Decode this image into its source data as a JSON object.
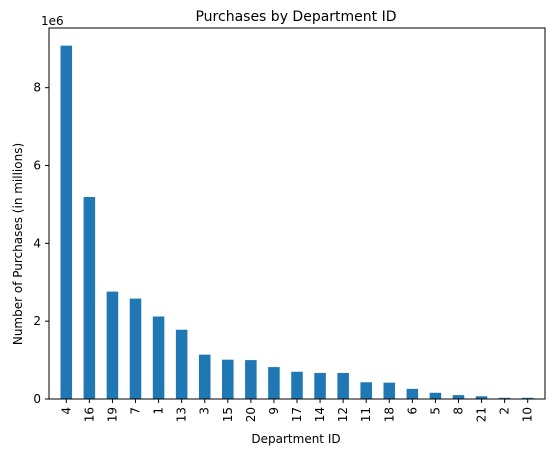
{
  "chart_data": {
    "type": "bar",
    "title": "Purchases by Department ID",
    "xlabel": "Department ID",
    "ylabel": "Number of Purchases (in millions)",
    "y_offset_label": "1e6",
    "categories": [
      "4",
      "16",
      "19",
      "7",
      "1",
      "13",
      "3",
      "15",
      "20",
      "9",
      "17",
      "14",
      "12",
      "11",
      "18",
      "6",
      "5",
      "8",
      "21",
      "2",
      "10"
    ],
    "values": [
      9080000,
      5190000,
      2760000,
      2580000,
      2120000,
      1780000,
      1140000,
      1010000,
      1000000,
      820000,
      700000,
      670000,
      670000,
      430000,
      420000,
      260000,
      160000,
      100000,
      70000,
      30000,
      30000
    ],
    "y_ticks": [
      0,
      2000000,
      4000000,
      6000000,
      8000000
    ],
    "y_tick_labels": [
      "0",
      "2",
      "4",
      "6",
      "8"
    ],
    "ylim": [
      0,
      9534000
    ],
    "grid": false,
    "bar_color": "#1f77b4"
  }
}
